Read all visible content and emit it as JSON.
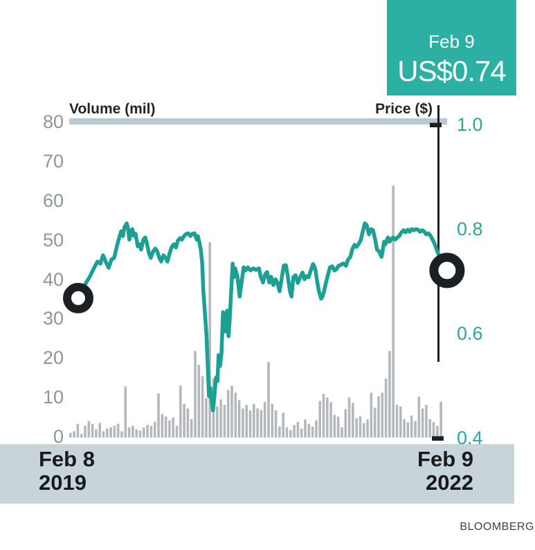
{
  "callout": {
    "date": "Feb 9",
    "price": "US$0.74"
  },
  "axes": {
    "left_title": "Volume (mil)",
    "right_title": "Price ($)",
    "left_ticks": [
      "80",
      "70",
      "60",
      "50",
      "40",
      "30",
      "20",
      "10",
      "0"
    ],
    "right_ticks": [
      "1.0",
      "0.8",
      "0.6",
      "0.4"
    ]
  },
  "x_axis": {
    "start_line1": "Feb 8",
    "start_line2": "2019",
    "end_line1": "Feb 9",
    "end_line2": "2022"
  },
  "source": "BLOOMBERG",
  "colors": {
    "callout_bg": "#2bb0a3",
    "price_line": "#1ca093",
    "tick_teal": "#2aa79b",
    "volume_bar": "#b4b8bd",
    "top_bar": "#bac9d1",
    "date_band": "#c7d4da",
    "ink": "#1d2023",
    "marker_fill": "#ffffff"
  },
  "chart_data": {
    "type": "line+bar",
    "title": "Share price and volume, Feb 8 2019 - Feb 9 2022",
    "x_range": [
      "Feb 8 2019",
      "Feb 9 2022"
    ],
    "price_axis": {
      "label": "Price ($)",
      "min": 0.4,
      "max": 1.0,
      "ticks": [
        1.0,
        0.8,
        0.6,
        0.4
      ],
      "side": "right"
    },
    "volume_axis": {
      "label": "Volume (mil)",
      "min": 0,
      "max": 80,
      "ticks": [
        80,
        70,
        60,
        50,
        40,
        30,
        20,
        10,
        0
      ],
      "side": "left"
    },
    "markers": {
      "start_price": 0.67,
      "end_price": 0.74,
      "end_label": "US$0.74",
      "end_date": "Feb 9"
    },
    "price_series": {
      "name": "Price ($)",
      "points": [
        [
          0.0,
          0.669
        ],
        [
          0.009,
          0.677
        ],
        [
          0.021,
          0.698
        ],
        [
          0.032,
          0.711
        ],
        [
          0.043,
          0.727
        ],
        [
          0.052,
          0.739
        ],
        [
          0.06,
          0.735
        ],
        [
          0.067,
          0.751
        ],
        [
          0.075,
          0.738
        ],
        [
          0.082,
          0.727
        ],
        [
          0.09,
          0.743
        ],
        [
          0.097,
          0.746
        ],
        [
          0.103,
          0.764
        ],
        [
          0.107,
          0.775
        ],
        [
          0.112,
          0.788
        ],
        [
          0.116,
          0.797
        ],
        [
          0.121,
          0.788
        ],
        [
          0.125,
          0.805
        ],
        [
          0.131,
          0.812
        ],
        [
          0.135,
          0.801
        ],
        [
          0.138,
          0.781
        ],
        [
          0.142,
          0.792
        ],
        [
          0.146,
          0.801
        ],
        [
          0.151,
          0.788
        ],
        [
          0.155,
          0.792
        ],
        [
          0.161,
          0.768
        ],
        [
          0.166,
          0.772
        ],
        [
          0.17,
          0.762
        ],
        [
          0.176,
          0.781
        ],
        [
          0.181,
          0.785
        ],
        [
          0.185,
          0.775
        ],
        [
          0.191,
          0.755
        ],
        [
          0.196,
          0.746
        ],
        [
          0.202,
          0.758
        ],
        [
          0.208,
          0.764
        ],
        [
          0.213,
          0.759
        ],
        [
          0.219,
          0.746
        ],
        [
          0.224,
          0.739
        ],
        [
          0.23,
          0.751
        ],
        [
          0.236,
          0.746
        ],
        [
          0.241,
          0.739
        ],
        [
          0.247,
          0.755
        ],
        [
          0.252,
          0.766
        ],
        [
          0.258,
          0.772
        ],
        [
          0.264,
          0.766
        ],
        [
          0.269,
          0.779
        ],
        [
          0.275,
          0.784
        ],
        [
          0.28,
          0.781
        ],
        [
          0.286,
          0.788
        ],
        [
          0.292,
          0.792
        ],
        [
          0.297,
          0.793
        ],
        [
          0.303,
          0.788
        ],
        [
          0.308,
          0.792
        ],
        [
          0.314,
          0.793
        ],
        [
          0.32,
          0.781
        ],
        [
          0.323,
          0.788
        ],
        [
          0.327,
          0.777
        ],
        [
          0.331,
          0.762
        ],
        [
          0.335,
          0.735
        ],
        [
          0.338,
          0.682
        ],
        [
          0.342,
          0.642
        ],
        [
          0.346,
          0.603
        ],
        [
          0.35,
          0.536
        ],
        [
          0.353,
          0.481
        ],
        [
          0.357,
          0.497
        ],
        [
          0.361,
          0.47
        ],
        [
          0.364,
          0.454
        ],
        [
          0.368,
          0.483
        ],
        [
          0.372,
          0.517
        ],
        [
          0.376,
          0.51
        ],
        [
          0.379,
          0.56
        ],
        [
          0.383,
          0.539
        ],
        [
          0.387,
          0.563
        ],
        [
          0.391,
          0.642
        ],
        [
          0.394,
          0.636
        ],
        [
          0.398,
          0.605
        ],
        [
          0.402,
          0.645
        ],
        [
          0.406,
          0.596
        ],
        [
          0.409,
          0.626
        ],
        [
          0.413,
          0.682
        ],
        [
          0.417,
          0.735
        ],
        [
          0.421,
          0.709
        ],
        [
          0.424,
          0.726
        ],
        [
          0.43,
          0.711
        ],
        [
          0.436,
          0.672
        ],
        [
          0.441,
          0.698
        ],
        [
          0.447,
          0.728
        ],
        [
          0.452,
          0.722
        ],
        [
          0.458,
          0.728
        ],
        [
          0.465,
          0.722
        ],
        [
          0.473,
          0.726
        ],
        [
          0.48,
          0.723
        ],
        [
          0.488,
          0.726
        ],
        [
          0.493,
          0.71
        ],
        [
          0.499,
          0.699
        ],
        [
          0.505,
          0.715
        ],
        [
          0.51,
          0.719
        ],
        [
          0.516,
          0.699
        ],
        [
          0.521,
          0.71
        ],
        [
          0.527,
          0.694
        ],
        [
          0.533,
          0.705
        ],
        [
          0.538,
          0.698
        ],
        [
          0.544,
          0.682
        ],
        [
          0.55,
          0.709
        ],
        [
          0.555,
          0.731
        ],
        [
          0.561,
          0.732
        ],
        [
          0.566,
          0.711
        ],
        [
          0.572,
          0.682
        ],
        [
          0.576,
          0.672
        ],
        [
          0.581,
          0.709
        ],
        [
          0.587,
          0.713
        ],
        [
          0.593,
          0.698
        ],
        [
          0.6,
          0.71
        ],
        [
          0.606,
          0.718
        ],
        [
          0.611,
          0.705
        ],
        [
          0.617,
          0.711
        ],
        [
          0.622,
          0.709
        ],
        [
          0.628,
          0.722
        ],
        [
          0.634,
          0.734
        ],
        [
          0.637,
          0.731
        ],
        [
          0.641,
          0.722
        ],
        [
          0.645,
          0.702
        ],
        [
          0.65,
          0.682
        ],
        [
          0.656,
          0.668
        ],
        [
          0.66,
          0.672
        ],
        [
          0.664,
          0.682
        ],
        [
          0.669,
          0.698
        ],
        [
          0.675,
          0.715
        ],
        [
          0.68,
          0.728
        ],
        [
          0.686,
          0.73
        ],
        [
          0.692,
          0.722
        ],
        [
          0.697,
          0.724
        ],
        [
          0.703,
          0.731
        ],
        [
          0.708,
          0.732
        ],
        [
          0.714,
          0.735
        ],
        [
          0.718,
          0.735
        ],
        [
          0.723,
          0.731
        ],
        [
          0.729,
          0.743
        ],
        [
          0.735,
          0.748
        ],
        [
          0.74,
          0.762
        ],
        [
          0.746,
          0.771
        ],
        [
          0.751,
          0.767
        ],
        [
          0.757,
          0.772
        ],
        [
          0.763,
          0.78
        ],
        [
          0.768,
          0.795
        ],
        [
          0.774,
          0.812
        ],
        [
          0.779,
          0.809
        ],
        [
          0.785,
          0.791
        ],
        [
          0.791,
          0.801
        ],
        [
          0.796,
          0.799
        ],
        [
          0.802,
          0.781
        ],
        [
          0.807,
          0.762
        ],
        [
          0.813,
          0.758
        ],
        [
          0.819,
          0.748
        ],
        [
          0.822,
          0.759
        ],
        [
          0.826,
          0.777
        ],
        [
          0.83,
          0.772
        ],
        [
          0.834,
          0.781
        ],
        [
          0.837,
          0.785
        ],
        [
          0.841,
          0.777
        ],
        [
          0.845,
          0.781
        ],
        [
          0.85,
          0.785
        ],
        [
          0.856,
          0.781
        ],
        [
          0.862,
          0.785
        ],
        [
          0.867,
          0.788
        ],
        [
          0.873,
          0.795
        ],
        [
          0.879,
          0.799
        ],
        [
          0.884,
          0.795
        ],
        [
          0.89,
          0.8
        ],
        [
          0.895,
          0.796
        ],
        [
          0.901,
          0.801
        ],
        [
          0.907,
          0.799
        ],
        [
          0.912,
          0.801
        ],
        [
          0.918,
          0.8
        ],
        [
          0.923,
          0.796
        ],
        [
          0.929,
          0.799
        ],
        [
          0.935,
          0.796
        ],
        [
          0.94,
          0.791
        ],
        [
          0.946,
          0.793
        ],
        [
          0.951,
          0.789
        ],
        [
          0.957,
          0.781
        ],
        [
          0.963,
          0.772
        ],
        [
          0.968,
          0.762
        ],
        [
          0.974,
          0.751
        ],
        [
          0.979,
          0.742
        ],
        [
          0.985,
          0.735
        ],
        [
          0.991,
          0.728
        ],
        [
          0.996,
          0.722
        ]
      ]
    },
    "volume_series": {
      "name": "Volume (mil)",
      "values": [
        1.2,
        1.6,
        3.5,
        0.9,
        3.0,
        4.2,
        3.5,
        2.1,
        3.7,
        1.6,
        2.3,
        2.6,
        3.0,
        3.5,
        1.6,
        13.0,
        2.6,
        3.0,
        2.1,
        1.8,
        2.6,
        3.2,
        3.0,
        4.0,
        11.2,
        6.0,
        5.3,
        4.4,
        5.1,
        3.0,
        13.2,
        8.6,
        7.4,
        4.7,
        22.0,
        18.5,
        15.6,
        10.0,
        49.6,
        15.0,
        7.9,
        9.7,
        8.3,
        12.1,
        13.2,
        11.4,
        9.5,
        7.4,
        8.3,
        6.9,
        8.6,
        7.4,
        7.0,
        9.1,
        19.2,
        8.6,
        6.9,
        2.8,
        6.3,
        2.6,
        1.9,
        3.2,
        4.0,
        2.3,
        4.6,
        3.5,
        2.8,
        4.4,
        9.3,
        11.1,
        10.2,
        9.0,
        5.8,
        5.3,
        2.6,
        7.2,
        10.2,
        8.8,
        4.9,
        5.4,
        3.7,
        4.6,
        11.4,
        7.6,
        10.5,
        11.4,
        15.0,
        22.0,
        64.0,
        8.3,
        7.9,
        4.7,
        3.9,
        5.6,
        4.2,
        10.4,
        7.4,
        8.3,
        4.7,
        3.9,
        3.0,
        9.1
      ]
    }
  }
}
